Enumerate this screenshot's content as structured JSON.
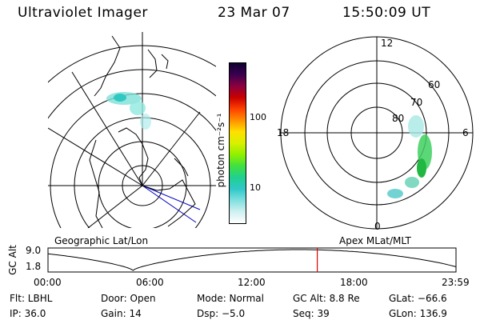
{
  "header": {
    "title": "Ultraviolet Imager",
    "date": "23 Mar 07",
    "time": "15:50:09 UT"
  },
  "colorbar": {
    "units_label": "photon cm⁻²s⁻¹",
    "tick_labels": [
      "100",
      "10"
    ],
    "colors": [
      "#100030",
      "#3a0050",
      "#8a0040",
      "#c80000",
      "#ff4000",
      "#ff9000",
      "#ffe000",
      "#d8f000",
      "#90f000",
      "#40e040",
      "#20d090",
      "#30c8c8",
      "#80e0e0",
      "#d0f0f0",
      "#ffffff"
    ]
  },
  "polar_plot": {
    "lat_labels": [
      "60",
      "70",
      "80"
    ],
    "mlt_labels": [
      "12",
      "18",
      "6",
      "0"
    ]
  },
  "panel_labels": {
    "left": "Geographic Lat/Lon",
    "right": "Apex MLat/MLT"
  },
  "altitude_plot": {
    "ylabel": "GC Alt",
    "ytick_top": "9.0",
    "ytick_bottom": "1.8",
    "xticks": [
      "00:00",
      "06:00",
      "12:00",
      "18:00",
      "23:59"
    ],
    "current_time_marker_hours": 15.84,
    "orbit_min_hour": 5.0
  },
  "status": {
    "filter": "Flt: LBHL",
    "door": "Door: Open",
    "mode": "Mode: Normal",
    "gc_alt": "GC Alt: 8.8 Re",
    "glat": "GLat: −66.6",
    "ip": "IP: 36.0",
    "gain": "Gain: 14",
    "dsp": "Dsp:   −5.0",
    "seq": "Seq: 39",
    "glon": "GLon: 136.9"
  }
}
